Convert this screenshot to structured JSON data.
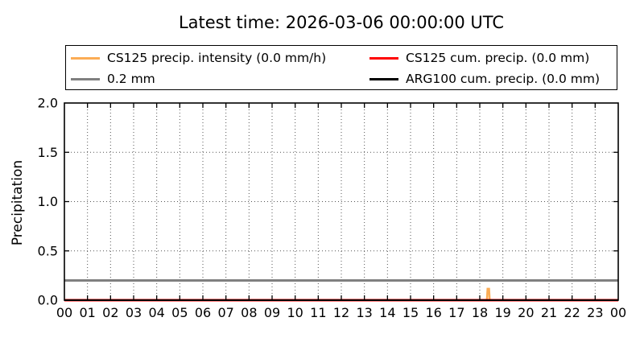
{
  "title": "Latest time: 2026-03-06 00:00:00 UTC",
  "legend": {
    "items": [
      {
        "label": "CS125 precip. intensity (0.0 mm/h)",
        "color": "#fbac55"
      },
      {
        "label": "0.2 mm",
        "color": "#808080"
      },
      {
        "label": "CS125 cum. precip. (0.0 mm)",
        "color": "#ff0000"
      },
      {
        "label": "ARG100 cum. precip. (0.0 mm)",
        "color": "#000000"
      }
    ]
  },
  "chart_data": {
    "type": "line",
    "title": "Latest time: 2026-03-06 00:00:00 UTC",
    "xlabel": "",
    "ylabel": "Precipitation",
    "x_range": [
      0,
      24
    ],
    "ylim": [
      0.0,
      2.0
    ],
    "x_ticks": [
      0,
      1,
      2,
      3,
      4,
      5,
      6,
      7,
      8,
      9,
      10,
      11,
      12,
      13,
      14,
      15,
      16,
      17,
      18,
      19,
      20,
      21,
      22,
      23,
      24
    ],
    "x_tick_labels": [
      "00",
      "01",
      "02",
      "03",
      "04",
      "05",
      "06",
      "07",
      "08",
      "09",
      "10",
      "11",
      "12",
      "13",
      "14",
      "15",
      "16",
      "17",
      "18",
      "19",
      "20",
      "21",
      "22",
      "23",
      "00"
    ],
    "y_ticks": [
      0.0,
      0.5,
      1.0,
      1.5,
      2.0
    ],
    "y_tick_labels": [
      "0.0",
      "0.5",
      "1.0",
      "1.5",
      "2.0"
    ],
    "grid": "dotted",
    "legend_position": "upper center, 2 columns, outside axes",
    "series": [
      {
        "name": "CS125 precip. intensity (0.0 mm/h)",
        "color": "#fbac55",
        "line_width": 2.5,
        "points": [
          [
            0,
            0
          ],
          [
            18.31,
            0
          ],
          [
            18.34,
            0.115
          ],
          [
            18.4,
            0.115
          ],
          [
            18.43,
            0
          ],
          [
            24,
            0
          ]
        ]
      },
      {
        "name": "0.2 mm",
        "color": "#808080",
        "line_width": 3,
        "points": [
          [
            0,
            0.2
          ],
          [
            24,
            0.2
          ]
        ]
      },
      {
        "name": "CS125 cum. precip. (0.0 mm)",
        "color": "#ff0000",
        "line_width": 3,
        "points": [
          [
            0,
            0
          ],
          [
            24,
            0
          ]
        ]
      },
      {
        "name": "ARG100 cum. precip. (0.0 mm)",
        "color": "#000000",
        "line_width": 2,
        "points": [
          [
            0,
            0
          ],
          [
            24,
            0
          ]
        ]
      }
    ]
  }
}
